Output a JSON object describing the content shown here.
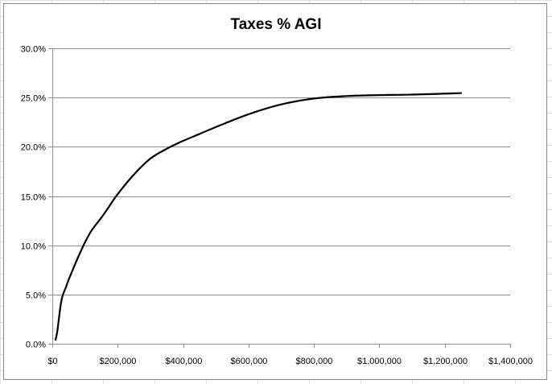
{
  "chart_data": {
    "type": "line",
    "title": "Taxes % AGI",
    "xlabel": "",
    "ylabel": "",
    "xlim": [
      0,
      1400000
    ],
    "ylim": [
      0,
      30
    ],
    "x_ticks": [
      0,
      200000,
      400000,
      600000,
      800000,
      1000000,
      1200000,
      1400000
    ],
    "x_tick_labels": [
      "$0",
      "$200,000",
      "$400,000",
      "$600,000",
      "$800,000",
      "$1,000,000",
      "$1,200,000",
      "$1,400,000"
    ],
    "y_ticks": [
      0,
      5,
      10,
      15,
      20,
      25,
      30
    ],
    "y_tick_labels": [
      "0.0%",
      "5.0%",
      "10.0%",
      "15.0%",
      "20.0%",
      "25.0%",
      "30.0%"
    ],
    "grid": true,
    "legend": "none",
    "series": [
      {
        "color": "#000000",
        "x": [
          10000,
          15000,
          20000,
          25000,
          30000,
          35000,
          40000,
          50000,
          60000,
          75000,
          90000,
          100000,
          120000,
          150000,
          175000,
          200000,
          250000,
          300000,
          350000,
          400000,
          450000,
          500000,
          600000,
          700000,
          800000,
          900000,
          1000000,
          1100000,
          1250000
        ],
        "y": [
          0.4,
          1.2,
          2.5,
          3.8,
          4.7,
          5.2,
          5.6,
          6.5,
          7.3,
          8.5,
          9.6,
          10.3,
          11.5,
          12.8,
          14.0,
          15.2,
          17.2,
          18.8,
          19.8,
          20.6,
          21.3,
          22.0,
          23.3,
          24.3,
          24.9,
          25.15,
          25.25,
          25.3,
          25.45
        ]
      }
    ]
  }
}
